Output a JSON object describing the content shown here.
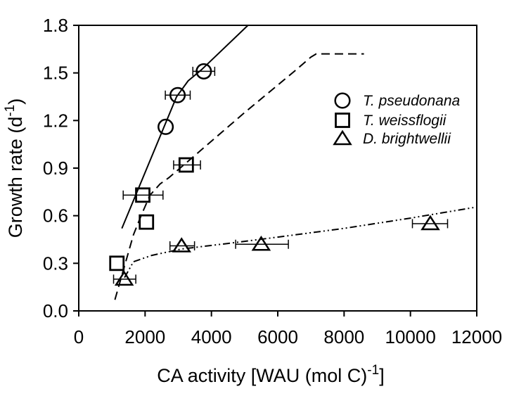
{
  "figure": {
    "background": "#ffffff",
    "foreground": "#000000"
  },
  "chart_data": {
    "type": "scatter",
    "title": "",
    "xlabel": "CA activity [WAU (mol C)^-1]",
    "ylabel": "Growth rate (d^-1)",
    "xlabel_parts": {
      "pre": "CA activity [WAU (mol C)",
      "sup": "-1",
      "post": "]"
    },
    "ylabel_parts": {
      "pre": "Growth rate (d",
      "sup": "-1",
      "post": ")"
    },
    "xlim": [
      0,
      12000
    ],
    "ylim": [
      0.0,
      1.8
    ],
    "xticks": [
      0,
      2000,
      4000,
      6000,
      8000,
      10000,
      12000
    ],
    "xtick_labels": [
      "0",
      "2000",
      "4000",
      "6000",
      "8000",
      "10000",
      "12000"
    ],
    "yticks": [
      0.0,
      0.3,
      0.6,
      0.9,
      1.2,
      1.5,
      1.8
    ],
    "ytick_labels": [
      "0.0",
      "0.3",
      "0.6",
      "0.9",
      "1.2",
      "1.5",
      "1.8"
    ],
    "grid": false,
    "legend": {
      "position": "inside-upper-right",
      "style": "no-box, italic labels"
    },
    "series": [
      {
        "id": "t-pseudonana",
        "name": "T. pseudonana",
        "marker": "circle",
        "line_style": "solid",
        "points": [
          {
            "x": 2620,
            "y": 1.16,
            "xerr": null
          },
          {
            "x": 2980,
            "y": 1.36,
            "xerr": [
              2610,
              3360
            ]
          },
          {
            "x": 3770,
            "y": 1.51,
            "xerr": [
              3440,
              4100
            ]
          }
        ],
        "fit_line": [
          [
            1300,
            0.52
          ],
          [
            2950,
            1.35
          ],
          [
            3300,
            1.45
          ],
          [
            3700,
            1.52
          ],
          [
            5100,
            1.8
          ]
        ]
      },
      {
        "id": "t-weissflogii",
        "name": "T. weissflogii",
        "marker": "square",
        "line_style": "dashed",
        "points": [
          {
            "x": 1150,
            "y": 0.3,
            "xerr": null
          },
          {
            "x": 1930,
            "y": 0.73,
            "xerr": [
              1340,
              2540
            ]
          },
          {
            "x": 2040,
            "y": 0.56,
            "xerr": null
          },
          {
            "x": 3240,
            "y": 0.92,
            "xerr": [
              2860,
              3670
            ]
          }
        ],
        "fit_line": [
          [
            1090,
            0.07
          ],
          [
            1650,
            0.48
          ],
          [
            1900,
            0.61
          ],
          [
            2150,
            0.73
          ],
          [
            2450,
            0.8
          ],
          [
            2720,
            0.84
          ],
          [
            3500,
            0.98
          ],
          [
            5000,
            1.25
          ],
          [
            6500,
            1.51
          ],
          [
            7000,
            1.6
          ],
          [
            7160,
            1.62
          ],
          [
            8600,
            1.62
          ]
        ]
      },
      {
        "id": "d-brightwellii",
        "name": "D. brightwellii",
        "marker": "triangle",
        "line_style": "dash-dot-dot",
        "points": [
          {
            "x": 1370,
            "y": 0.2,
            "xerr": [
              1050,
              1720
            ]
          },
          {
            "x": 3100,
            "y": 0.41,
            "xerr": [
              2750,
              3490
            ]
          },
          {
            "x": 5500,
            "y": 0.42,
            "xerr": [
              4730,
              6320
            ]
          },
          {
            "x": 10600,
            "y": 0.55,
            "xerr": [
              10060,
              11120
            ]
          }
        ],
        "fit_line": [
          [
            1380,
            0.21
          ],
          [
            1650,
            0.31
          ],
          [
            2200,
            0.35
          ],
          [
            3100,
            0.39
          ],
          [
            4500,
            0.425
          ],
          [
            6000,
            0.465
          ],
          [
            8000,
            0.52
          ],
          [
            10000,
            0.585
          ],
          [
            12000,
            0.655
          ]
        ]
      }
    ]
  }
}
